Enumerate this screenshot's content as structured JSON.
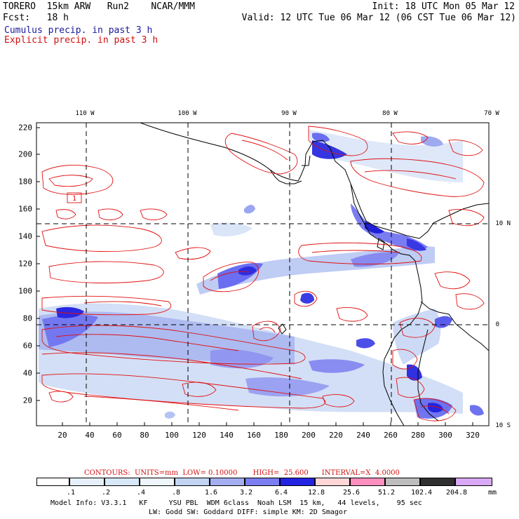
{
  "header": {
    "line1_left": "TORERO  15km ARW   Run2    NCAR/MMM",
    "line2_left": "Fcst:   18 h",
    "line1_right": "Init: 18 UTC Mon 05 Mar 12",
    "line2_right": "Valid: 12 UTC Tue 06 Mar 12 (06 CST Tue 06 Mar 12)",
    "legend_cumulus": "Cumulus precip. in past 3 h",
    "legend_explicit": "Explicit precip. in past 3 h"
  },
  "map": {
    "lon_labels": [
      "110 W",
      "100 W",
      "90 W",
      "80 W",
      "70 W"
    ],
    "lat_labels": [
      "10 N",
      "0",
      "10 S"
    ],
    "y_ticks": [
      "220",
      "200",
      "180",
      "160",
      "140",
      "120",
      "100",
      "80",
      "60",
      "40",
      "20"
    ],
    "x_ticks": [
      "20",
      "40",
      "60",
      "80",
      "100",
      "120",
      "140",
      "160",
      "180",
      "200",
      "220",
      "240",
      "260",
      "280",
      "300",
      "320"
    ],
    "grid_box_label": "1",
    "colors": {
      "land_line": "#000000",
      "explicit_contour": "#e01010",
      "grid_dash": "#000000"
    }
  },
  "contours_text": "CONTOURS:  UNITS=mm  LOW= 0.10000       HIGH=  25.600      INTERVAL=X  4.0000",
  "colorbar": {
    "labels": [
      ".1",
      ".2",
      ".4",
      ".8",
      "1.6",
      "3.2",
      "6.4",
      "12.8",
      "25.6",
      "51.2",
      "102.4",
      "204.8"
    ],
    "units": "mm",
    "colors": [
      "#ffffff",
      "#e6f0fa",
      "#d7e8f8",
      "#eef6fc",
      "#c2d4f2",
      "#a3aef0",
      "#7b7ef0",
      "#5656f0",
      "#2323e4",
      "#ffd6d6",
      "#ff8fbf",
      "#bdbdbd",
      "#2f2f2f",
      "#d9a8f7"
    ]
  },
  "footer": {
    "line1": "Model Info: V3.3.1   KF     YSU PBL  WDM 6class  Noah LSM  15 km,   44 levels,    95 sec",
    "line2": "LW: Godd SW: Goddard DIFF: simple KM: 2D Smagor"
  }
}
